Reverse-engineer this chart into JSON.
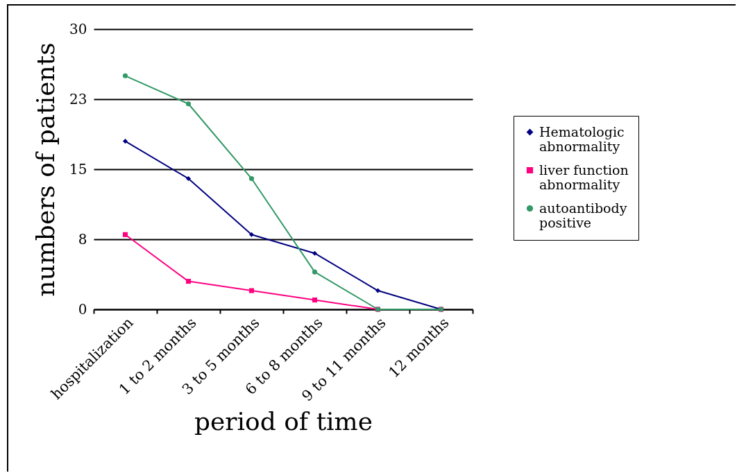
{
  "chart_data": {
    "type": "line",
    "xlabel": "period of time",
    "ylabel": "numbers of patients",
    "categories": [
      "hospitalization",
      "1 to 2 months",
      "3 to 5 months",
      "6 to 8 months",
      "9 to 11 months",
      "12 months"
    ],
    "series": [
      {
        "name": "Hematologic abnormality",
        "color": "#000080",
        "marker": "diamond",
        "values": [
          18,
          14,
          8,
          6,
          2,
          0
        ]
      },
      {
        "name": "liver function abnormality",
        "color": "#ff0080",
        "marker": "square",
        "values": [
          8,
          3,
          2,
          1,
          0,
          0
        ]
      },
      {
        "name": "autoantibody positive",
        "color": "#339966",
        "marker": "circle",
        "values": [
          25,
          22,
          14,
          4,
          0,
          0
        ]
      }
    ],
    "ylim": [
      0,
      30
    ],
    "yticks": [
      0,
      {
        "value": 7.5,
        "label": "8"
      },
      15,
      {
        "value": 22.5,
        "label": "23"
      },
      30
    ],
    "grid": "y",
    "legend": "right",
    "line_style": "solid"
  }
}
